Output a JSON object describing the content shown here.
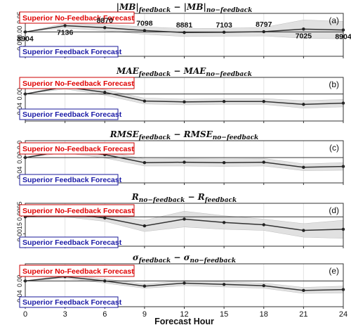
{
  "chart_data": {
    "type": "line",
    "x": [
      0,
      3,
      6,
      9,
      12,
      15,
      18,
      21,
      24
    ],
    "xlabel": "Forecast Hour",
    "x_ticks": [
      "0",
      "3",
      "6",
      "9",
      "12",
      "15",
      "18",
      "21",
      "24"
    ],
    "legend_top": "Superior No-Feedback Forecast",
    "legend_bottom": "Superior Feedback Forecast",
    "sample_counts": [
      "8904",
      "7136",
      "8870",
      "7098",
      "8881",
      "7103",
      "8797",
      "7025",
      "8904"
    ],
    "panels": [
      {
        "tag": "(a)",
        "title": "|MB|",
        "title_sub": "feedback",
        "title_op": " − ",
        "title2": "|MB|",
        "title2_sub": "no−feedback",
        "y_ticks": [
          "0.05",
          "0.00",
          "−0.05"
        ],
        "y_tick_values": [
          0.05,
          0.0,
          -0.05
        ],
        "ylim": [
          -0.085,
          0.065
        ],
        "values": [
          0.0,
          0.022,
          0.015,
          0.005,
          -0.002,
          -0.001,
          0.001,
          0.01,
          0.007
        ],
        "lower": [
          0.0,
          0.014,
          0.004,
          -0.008,
          -0.016,
          -0.015,
          -0.014,
          -0.022,
          -0.024
        ],
        "upper": [
          0.0,
          0.03,
          0.026,
          0.018,
          0.012,
          0.013,
          0.016,
          0.042,
          0.037
        ]
      },
      {
        "tag": "(b)",
        "title": "MAE",
        "title_sub": "feedback",
        "title_op": " − ",
        "title2": "MAE",
        "title2_sub": "no−feedback",
        "y_ticks": [
          "0.00",
          "−0.04"
        ],
        "y_tick_values": [
          0.0,
          -0.04
        ],
        "ylim": [
          -0.065,
          0.04
        ],
        "values": [
          0.0,
          0.017,
          0.004,
          -0.017,
          -0.019,
          -0.018,
          -0.018,
          -0.025,
          -0.022
        ],
        "lower": [
          0.0,
          0.012,
          -0.003,
          -0.024,
          -0.026,
          -0.025,
          -0.025,
          -0.034,
          -0.031
        ],
        "upper": [
          0.0,
          0.022,
          0.011,
          -0.01,
          -0.012,
          -0.011,
          -0.011,
          -0.016,
          -0.013
        ]
      },
      {
        "tag": "(c)",
        "title": "RMSE",
        "title_sub": "feedback",
        "title_op": " − ",
        "title2": "RMSE",
        "title2_sub": "no−feedback",
        "y_ticks": [
          "0.0",
          "0.00",
          "−0.04"
        ],
        "y_tick_values": [
          0.03,
          0.0,
          -0.04
        ],
        "ylim": [
          -0.06,
          0.04
        ],
        "values": [
          0.0,
          0.016,
          0.007,
          -0.012,
          -0.011,
          -0.012,
          -0.011,
          -0.023,
          -0.021
        ],
        "lower": [
          0.0,
          0.011,
          -0.001,
          -0.02,
          -0.02,
          -0.021,
          -0.02,
          -0.031,
          -0.03
        ],
        "upper": [
          0.0,
          0.021,
          0.015,
          -0.003,
          -0.002,
          -0.003,
          -0.002,
          -0.015,
          -0.012
        ]
      },
      {
        "tag": "(d)",
        "title": "R",
        "title_sub": "no−feedback",
        "title_op": " − ",
        "title2": "R",
        "title2_sub": "feedback",
        "y_ticks": [
          "0.0005",
          "−0.0015"
        ],
        "y_tick_values": [
          0.0005,
          -0.0015
        ],
        "ylim": [
          -0.0026,
          0.0012
        ],
        "values": [
          0.0,
          0.0003,
          -0.0001,
          -0.0008,
          -0.0002,
          -0.0005,
          -0.0007,
          -0.0012,
          -0.0011
        ],
        "lower": [
          0.0,
          0.0,
          -0.0004,
          -0.0013,
          -0.0009,
          -0.0011,
          -0.0012,
          -0.0018,
          -0.0019
        ],
        "upper": [
          0.0,
          0.0006,
          0.0002,
          -0.0003,
          0.0005,
          0.0001,
          -0.0002,
          -0.0006,
          -0.0003
        ]
      },
      {
        "tag": "(e)",
        "title": "σ",
        "title_sub": "feedback",
        "title_op": " − ",
        "title2": "σ",
        "title2_sub": "no−feedback",
        "y_ticks": [
          "0.00",
          "−0.04"
        ],
        "y_tick_values": [
          0.0,
          -0.04
        ],
        "ylim": [
          -0.06,
          0.04
        ],
        "values": [
          0.0,
          0.01,
          0.0,
          -0.012,
          -0.005,
          -0.008,
          -0.011,
          -0.022,
          -0.02
        ],
        "lower": [
          0.0,
          0.006,
          -0.005,
          -0.017,
          -0.011,
          -0.014,
          -0.017,
          -0.029,
          -0.028
        ],
        "upper": [
          0.0,
          0.014,
          0.005,
          -0.007,
          0.001,
          -0.002,
          -0.005,
          -0.015,
          -0.012
        ]
      }
    ]
  }
}
